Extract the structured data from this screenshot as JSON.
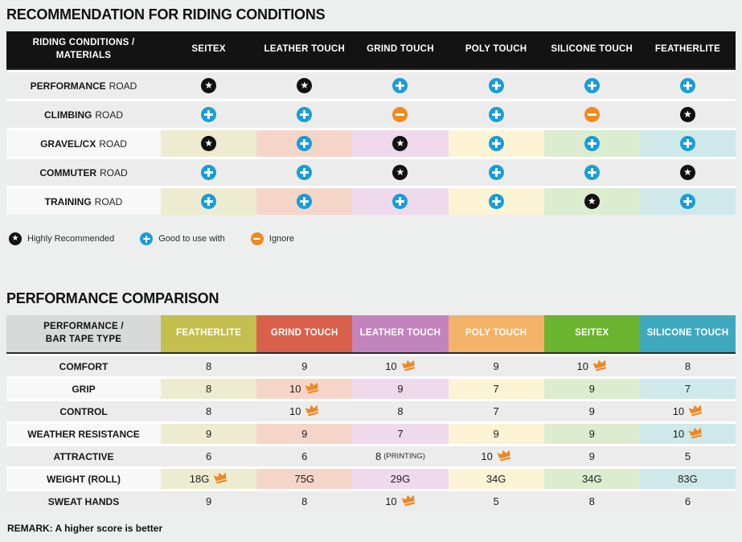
{
  "titles": {
    "table1": "RECOMMENDATION FOR RIDING CONDITIONS",
    "table2": "PERFORMANCE COMPARISON"
  },
  "table1": {
    "header": {
      "label_line1": "RIDING CONDITIONS /",
      "label_line2": "MATERIALS",
      "columns": [
        "SEITEX",
        "LEATHER TOUCH",
        "GRIND TOUCH",
        "POLY TOUCH",
        "SILICONE TOUCH",
        "FEATHERLITE"
      ]
    },
    "rows": [
      {
        "label_bold": "PERFORMANCE",
        "label_rest": "ROAD",
        "colored": false,
        "cells": [
          "star",
          "star",
          "plus",
          "plus",
          "plus",
          "plus"
        ]
      },
      {
        "label_bold": "CLIMBING",
        "label_rest": "ROAD",
        "colored": false,
        "cells": [
          "plus",
          "plus",
          "minus",
          "plus",
          "minus",
          "star"
        ]
      },
      {
        "label_bold": "GRAVEL/CX",
        "label_rest": "ROAD",
        "colored": true,
        "cells": [
          "star",
          "plus",
          "star",
          "plus",
          "plus",
          "plus"
        ]
      },
      {
        "label_bold": "COMMUTER",
        "label_rest": "ROAD",
        "colored": false,
        "cells": [
          "plus",
          "plus",
          "star",
          "plus",
          "plus",
          "star"
        ]
      },
      {
        "label_bold": "TRAINING",
        "label_rest": "ROAD",
        "colored": true,
        "cells": [
          "plus",
          "plus",
          "plus",
          "plus",
          "star",
          "plus"
        ]
      }
    ],
    "legend": [
      {
        "icon": "star",
        "label": "Highly Recommended"
      },
      {
        "icon": "plus",
        "label": "Good to use with"
      },
      {
        "icon": "minus",
        "label": "Ignore"
      }
    ]
  },
  "table2": {
    "header": {
      "label_line1": "PERFORMANCE /",
      "label_line2": "BAR TAPE TYPE",
      "columns": [
        {
          "label": "FEATHERLITE",
          "color": "#c4be4e"
        },
        {
          "label": "GRIND TOUCH",
          "color": "#d9614c"
        },
        {
          "label": "LEATHER TOUCH",
          "color": "#c383bd"
        },
        {
          "label": "POLY TOUCH",
          "color": "#f4b369"
        },
        {
          "label": "SEITEX",
          "color": "#6ab430"
        },
        {
          "label": "SILICONE TOUCH",
          "color": "#3ea9be"
        }
      ]
    },
    "rows": [
      {
        "label": "COMFORT",
        "colored": false,
        "cells": [
          {
            "v": "8"
          },
          {
            "v": "9"
          },
          {
            "v": "10",
            "crown": true
          },
          {
            "v": "9"
          },
          {
            "v": "10",
            "crown": true
          },
          {
            "v": "8"
          }
        ]
      },
      {
        "label": "GRIP",
        "colored": true,
        "cells": [
          {
            "v": "8"
          },
          {
            "v": "10",
            "crown": true
          },
          {
            "v": "9"
          },
          {
            "v": "7"
          },
          {
            "v": "9"
          },
          {
            "v": "7"
          }
        ]
      },
      {
        "label": "CONTROL",
        "colored": false,
        "cells": [
          {
            "v": "8"
          },
          {
            "v": "10",
            "crown": true
          },
          {
            "v": "8"
          },
          {
            "v": "7"
          },
          {
            "v": "9"
          },
          {
            "v": "10",
            "crown": true
          }
        ]
      },
      {
        "label": "WEATHER RESISTANCE",
        "colored": true,
        "cells": [
          {
            "v": "9"
          },
          {
            "v": "9"
          },
          {
            "v": "7"
          },
          {
            "v": "9"
          },
          {
            "v": "9"
          },
          {
            "v": "10",
            "crown": true
          }
        ]
      },
      {
        "label": "ATTRACTIVE",
        "colored": false,
        "cells": [
          {
            "v": "6"
          },
          {
            "v": "6"
          },
          {
            "v": "8",
            "note": "(PRINTING)"
          },
          {
            "v": "10",
            "crown": true
          },
          {
            "v": "9"
          },
          {
            "v": "5"
          }
        ]
      },
      {
        "label": "WEIGHT (ROLL)",
        "colored": true,
        "cells": [
          {
            "v": "18G",
            "crown": true
          },
          {
            "v": "75G"
          },
          {
            "v": "29G"
          },
          {
            "v": "34G"
          },
          {
            "v": "34G"
          },
          {
            "v": "83G"
          }
        ]
      },
      {
        "label": "SWEAT HANDS",
        "colored": false,
        "cells": [
          {
            "v": "9"
          },
          {
            "v": "8"
          },
          {
            "v": "10",
            "crown": true
          },
          {
            "v": "5"
          },
          {
            "v": "8"
          },
          {
            "v": "6"
          }
        ]
      }
    ],
    "remark": "REMARK: A higher score is better"
  },
  "colors": {
    "page_bg": "#edeeee",
    "header1_bg": "#131313",
    "header2_label_bg": "#d8d9d9",
    "row_gray": "#ececec",
    "row_label_light": "#f8f8f8",
    "pale": [
      "#eeecd0",
      "#f6d5c9",
      "#efd9ec",
      "#fdf4d5",
      "#dcedcf",
      "#cfe9ea"
    ],
    "icon_star_bg": "#101010",
    "icon_plus_bg": "#189dd9",
    "icon_minus_bg": "#ee8a1f",
    "crown": "#ee8722"
  }
}
